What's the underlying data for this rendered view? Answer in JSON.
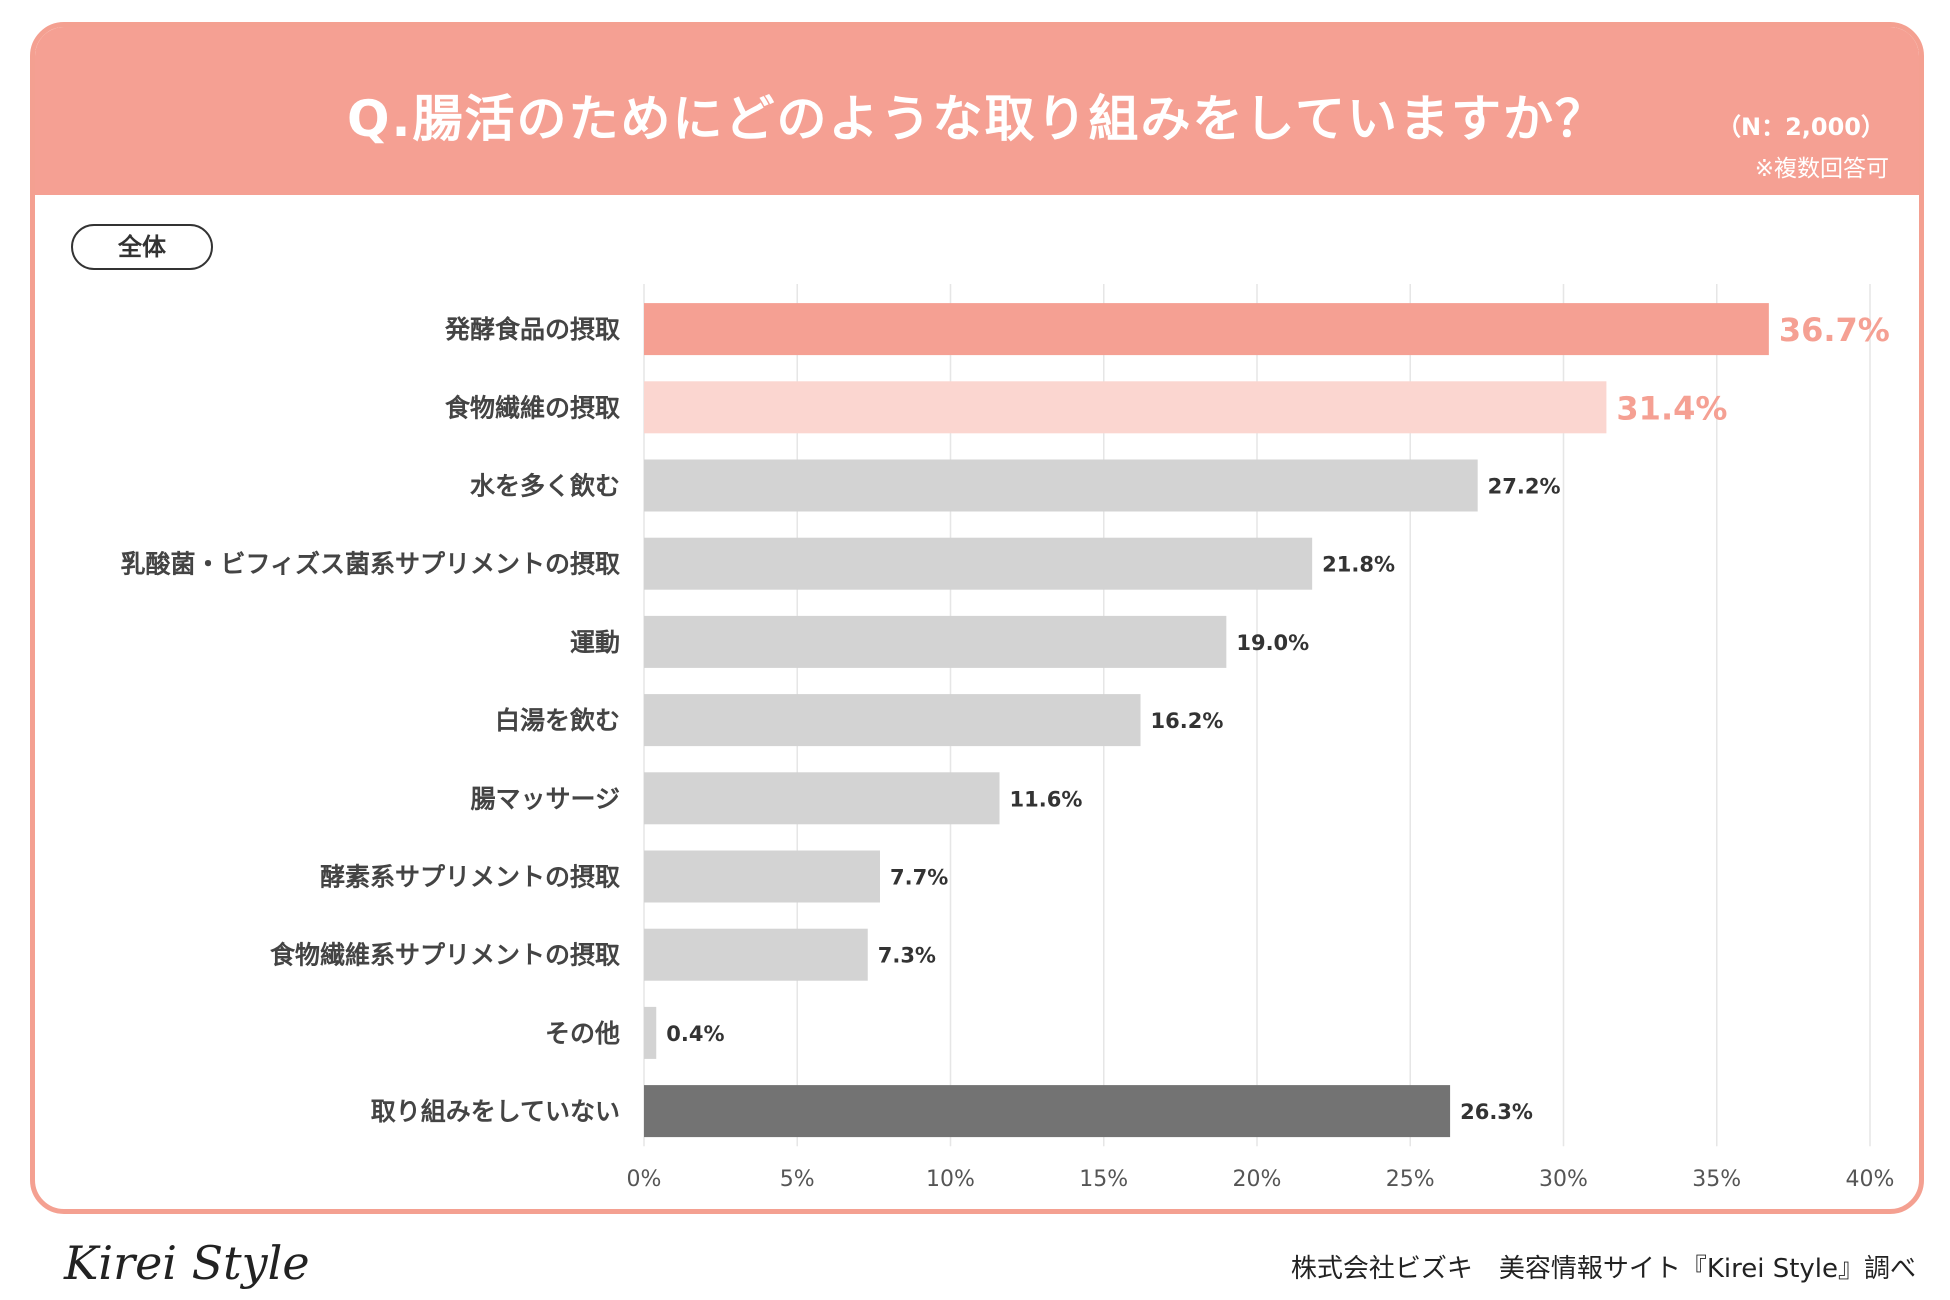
{
  "header": {
    "title": "Q.腸活のためにどのような取り組みをしていますか？",
    "sample": "（N：2,000）",
    "note": "※複数回答可"
  },
  "segment_label": "全体",
  "chart_data": {
    "type": "bar",
    "orientation": "horizontal",
    "title": "Q.腸活のためにどのような取り組みをしていますか？",
    "categories": [
      "発酵食品の摂取",
      "食物繊維の摂取",
      "水を多く飲む",
      "乳酸菌・ビフィズス菌系サプリメントの摂取",
      "運動",
      "白湯を飲む",
      "腸マッサージ",
      "酵素系サプリメントの摂取",
      "食物繊維系サプリメントの摂取",
      "その他",
      "取り組みをしていない"
    ],
    "values": [
      36.7,
      31.4,
      27.2,
      21.8,
      19.0,
      16.2,
      11.6,
      7.7,
      7.3,
      0.4,
      26.3
    ],
    "value_labels": [
      "36.7%",
      "31.4%",
      "27.2%",
      "21.8%",
      "19.0%",
      "16.2%",
      "11.6%",
      "7.7%",
      "7.3%",
      "0.4%",
      "26.3%"
    ],
    "bar_colors": [
      "#f5a093",
      "#fbd6d0",
      "#d3d3d3",
      "#d3d3d3",
      "#d3d3d3",
      "#d3d3d3",
      "#d3d3d3",
      "#d3d3d3",
      "#d3d3d3",
      "#d3d3d3",
      "#737373"
    ],
    "label_colors": [
      "#f5a093",
      "#f5a093",
      "#333333",
      "#333333",
      "#333333",
      "#333333",
      "#333333",
      "#333333",
      "#333333",
      "#333333",
      "#333333"
    ],
    "highlight": [
      true,
      true,
      false,
      false,
      false,
      false,
      false,
      false,
      false,
      false,
      false
    ],
    "xlim": [
      0,
      40
    ],
    "xticks": [
      0,
      5,
      10,
      15,
      20,
      25,
      30,
      35,
      40
    ],
    "xtick_labels": [
      "0%",
      "5%",
      "10%",
      "15%",
      "20%",
      "25%",
      "30%",
      "35%",
      "40%"
    ],
    "grid": true
  },
  "footer": {
    "logo": "Kirei Style",
    "credit": "株式会社ビズキ　美容情報サイト『Kirei Style』調べ"
  }
}
